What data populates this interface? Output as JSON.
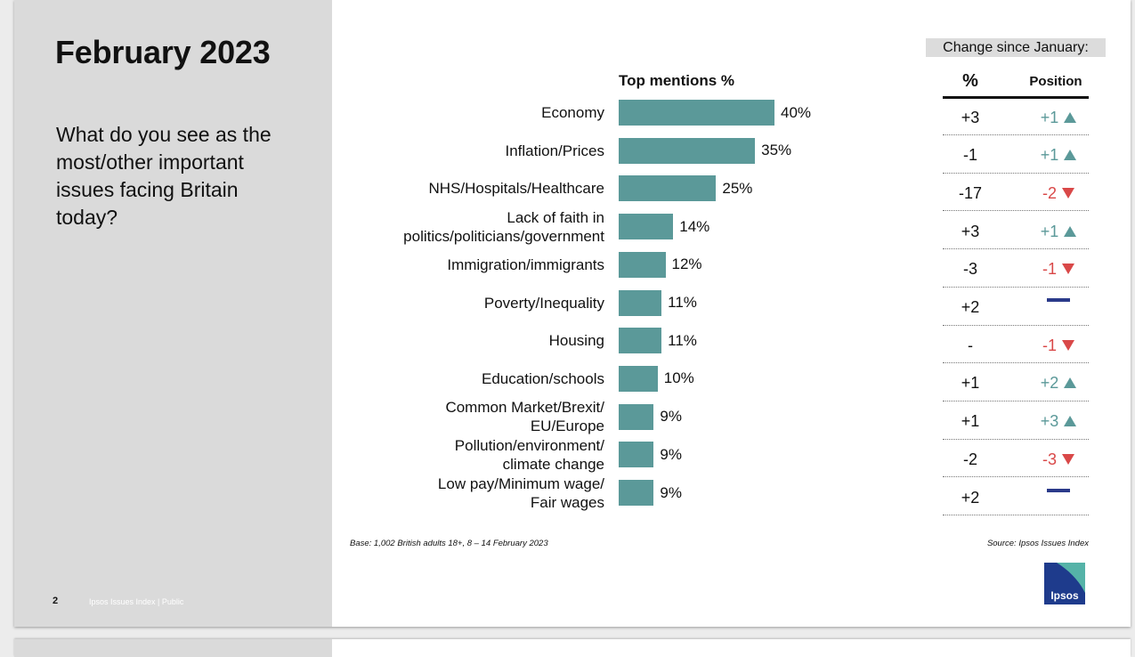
{
  "slide": {
    "title": "February 2023",
    "question": "What do you see as the most/other important issues facing Britain today?",
    "page_number": "2",
    "footer": "Ipsos Issues Index | Public",
    "base_note": "Base: 1,002 British adults 18+, 8 – 14 February 2023",
    "source_note": "Source: Ipsos Issues Index",
    "logo_text": "Ipsos"
  },
  "chart_data": {
    "type": "bar",
    "orientation": "horizontal",
    "title": "Top mentions %",
    "categories": [
      "Economy",
      "Inflation/Prices",
      "NHS/Hospitals/Healthcare",
      "Lack of faith in politics/politicians/government",
      "Immigration/immigrants",
      "Poverty/Inequality",
      "Housing",
      "Education/schools",
      "Common Market/Brexit/ EU/Europe",
      "Pollution/environment/ climate change",
      "Low pay/Minimum wage/ Fair wages"
    ],
    "category_lines": [
      [
        "Economy"
      ],
      [
        "Inflation/Prices"
      ],
      [
        "NHS/Hospitals/Healthcare"
      ],
      [
        "Lack of faith in",
        "politics/politicians/government"
      ],
      [
        "Immigration/immigrants"
      ],
      [
        "Poverty/Inequality"
      ],
      [
        "Housing"
      ],
      [
        "Education/schools"
      ],
      [
        "Common Market/Brexit/",
        "EU/Europe"
      ],
      [
        "Pollution/environment/",
        "climate change"
      ],
      [
        "Low pay/Minimum wage/",
        "Fair wages"
      ]
    ],
    "values": [
      40,
      35,
      25,
      14,
      12,
      11,
      11,
      10,
      9,
      9,
      9
    ],
    "value_labels": [
      "40%",
      "35%",
      "25%",
      "14%",
      "12%",
      "11%",
      "11%",
      "10%",
      "9%",
      "9%",
      "9%"
    ],
    "bar_color": "#5b9999",
    "xlim": [
      0,
      40
    ]
  },
  "change_table": {
    "header": "Change since January:",
    "pct_heading": "%",
    "position_heading": "Position",
    "pct_changes": [
      "+3",
      "-1",
      "-17",
      "+3",
      "-3",
      "+2",
      "-",
      "+1",
      "+1",
      "-2",
      "+2"
    ],
    "position_changes": [
      {
        "text": "+1",
        "dir": "up"
      },
      {
        "text": "+1",
        "dir": "up"
      },
      {
        "text": "-2",
        "dir": "down"
      },
      {
        "text": "+1",
        "dir": "up"
      },
      {
        "text": "-1",
        "dir": "down"
      },
      {
        "text": "",
        "dir": "same"
      },
      {
        "text": "-1",
        "dir": "down"
      },
      {
        "text": "+2",
        "dir": "up"
      },
      {
        "text": "+3",
        "dir": "up"
      },
      {
        "text": "-3",
        "dir": "down"
      },
      {
        "text": "",
        "dir": "same"
      }
    ],
    "colors": {
      "up": "#5b9999",
      "down": "#d94848",
      "same": "#2a3a8a"
    }
  }
}
